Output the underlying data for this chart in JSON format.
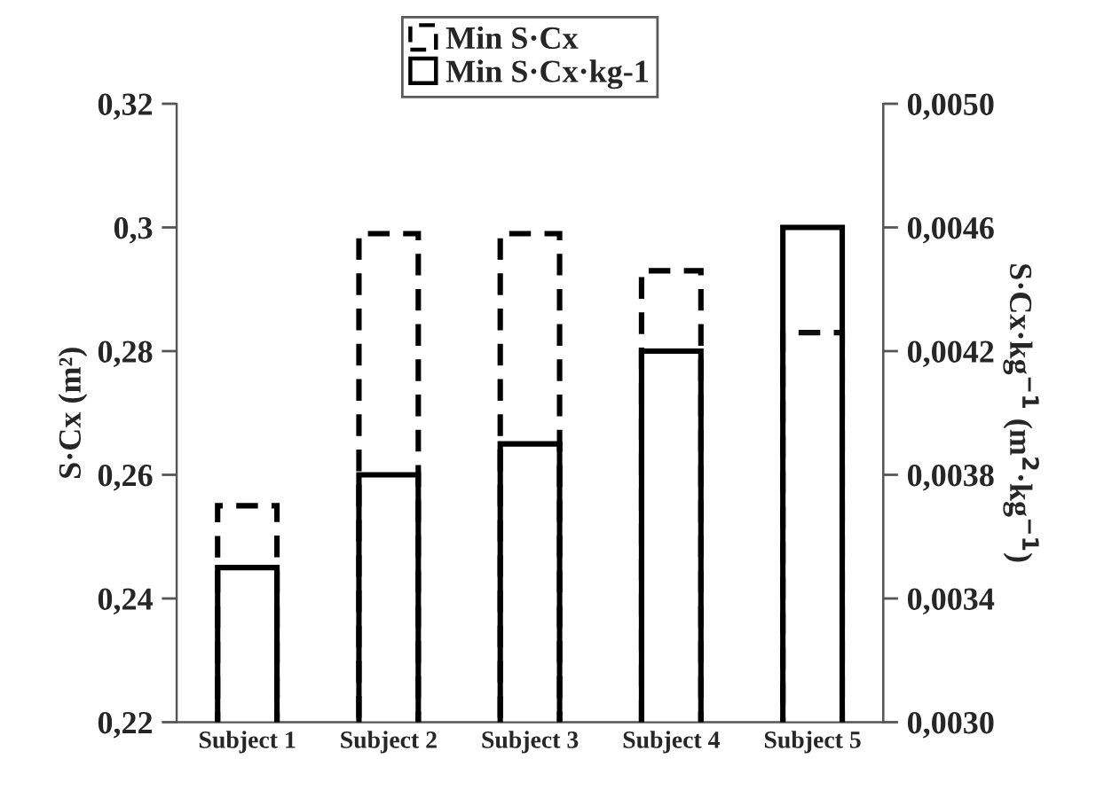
{
  "chart_data": {
    "type": "bar",
    "categories": [
      "Subject 1",
      "Subject 2",
      "Subject 3",
      "Subject 4",
      "Subject 5"
    ],
    "ylabel": "S·Cx (m²)",
    "y2label": "S·Cx·kg$^{−1}$ (m$^{2}$·kg$^{−1}$)",
    "ylim": [
      0.22,
      0.32
    ],
    "yticks": [
      {
        "value": 0.22,
        "label": "0,22"
      },
      {
        "value": 0.24,
        "label": "0,24"
      },
      {
        "value": 0.26,
        "label": "0,26"
      },
      {
        "value": 0.28,
        "label": "0,28"
      },
      {
        "value": 0.3,
        "label": "0,3"
      },
      {
        "value": 0.32,
        "label": "0,32"
      }
    ],
    "y2lim": [
      0.003,
      0.005
    ],
    "y2ticks": [
      {
        "value": 0.003,
        "label": "0,0030"
      },
      {
        "value": 0.0034,
        "label": "0,0034"
      },
      {
        "value": 0.0038,
        "label": "0,0038"
      },
      {
        "value": 0.0042,
        "label": "0,0042"
      },
      {
        "value": 0.0046,
        "label": "0,0046"
      },
      {
        "value": 0.005,
        "label": "0,0050"
      }
    ],
    "series": [
      {
        "name": "Min S·Cx",
        "color": "#000000",
        "line_style": "dashed",
        "values": [
          0.255,
          0.299,
          0.299,
          0.293,
          0.283
        ]
      },
      {
        "name": "Min S·Cx·kg-1",
        "color": "#000000",
        "line_style": "solid",
        "axis": "y2",
        "values": [
          0.0035,
          0.0038,
          0.0039,
          0.0042,
          0.0046
        ]
      }
    ],
    "legend": "top",
    "grid": false
  }
}
